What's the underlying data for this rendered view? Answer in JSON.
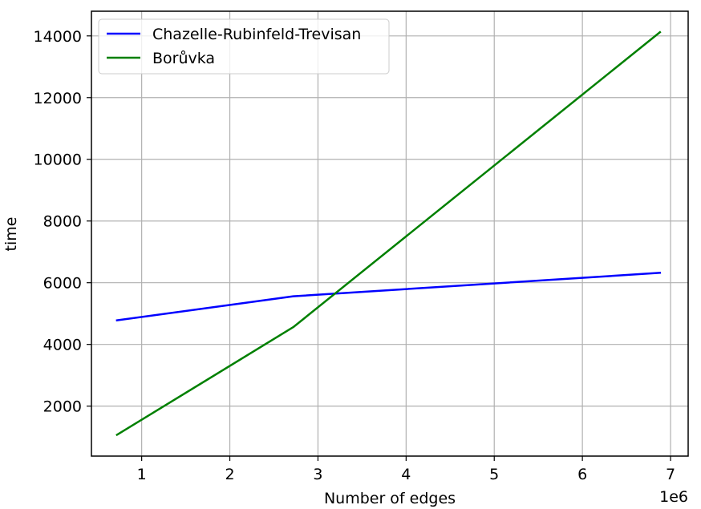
{
  "chart_data": {
    "type": "line",
    "title": "",
    "xlabel": "Number of edges",
    "ylabel": "time",
    "x_offset_label": "1e6",
    "x_ticks": [
      1,
      2,
      3,
      4,
      5,
      6,
      7
    ],
    "x_tick_labels": [
      "1",
      "2",
      "3",
      "4",
      "5",
      "6",
      "7"
    ],
    "y_ticks": [
      2000,
      4000,
      6000,
      8000,
      10000,
      12000,
      14000
    ],
    "y_tick_labels": [
      "2000",
      "4000",
      "6000",
      "8000",
      "10000",
      "12000",
      "14000"
    ],
    "xlim": [
      0.43,
      7.2
    ],
    "ylim": [
      380,
      14800
    ],
    "grid": true,
    "legend_position": "upper-left",
    "series": [
      {
        "name": "Chazelle-Rubinfeld-Trevisan",
        "color": "#0000ff",
        "x": [
          0.72,
          2.72,
          6.88
        ],
        "y": [
          4780,
          5560,
          6320
        ]
      },
      {
        "name": "Borůvka",
        "color": "#008000",
        "x": [
          0.72,
          2.72,
          6.88
        ],
        "y": [
          1070,
          4560,
          14120
        ]
      }
    ]
  }
}
